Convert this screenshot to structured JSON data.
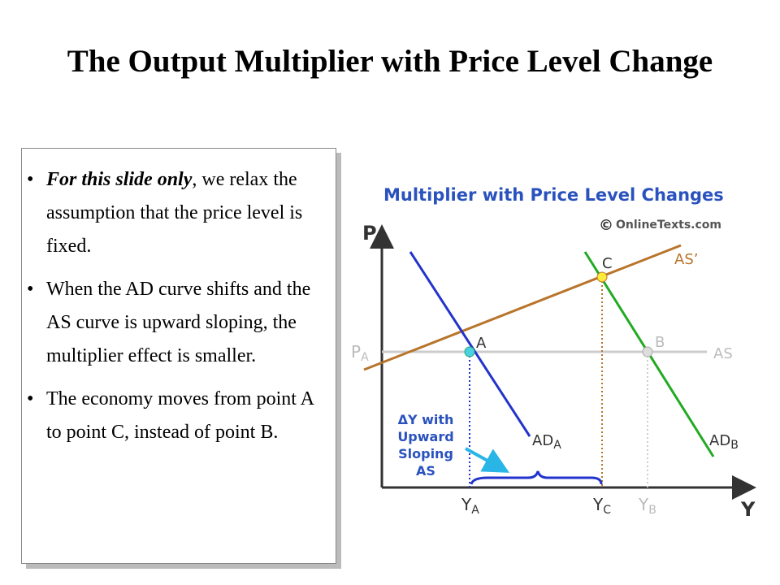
{
  "title": "The Output Multiplier with Price Level Change",
  "bullets": [
    {
      "emphasis": "For this slide only",
      "text": ", we relax the assumption that the price level is fixed."
    },
    {
      "text": "When the AD curve shifts and the AS curve is upward sloping, the multiplier effect is smaller."
    },
    {
      "text": "The economy moves from point A to point C, instead of point B."
    }
  ],
  "diagram": {
    "title": "Multiplier with Price Level Changes",
    "copyright": "©",
    "source": "OnlineTexts.com",
    "y_axis": "P",
    "x_axis": "Y",
    "p_a": {
      "main": "P",
      "sub": "A"
    },
    "as": "AS",
    "as_prime": "AS’",
    "point_a": "A",
    "point_b": "B",
    "point_c": "C",
    "ad_a": {
      "main": "AD",
      "sub": "A"
    },
    "ad_b": {
      "main": "AD",
      "sub": "B"
    },
    "y_a": {
      "main": "Y",
      "sub": "A"
    },
    "y_c": {
      "main": "Y",
      "sub": "C"
    },
    "y_b": {
      "main": "Y",
      "sub": "B"
    },
    "delta_note": [
      "ΔY with",
      "Upward",
      "Sloping",
      "AS"
    ]
  }
}
